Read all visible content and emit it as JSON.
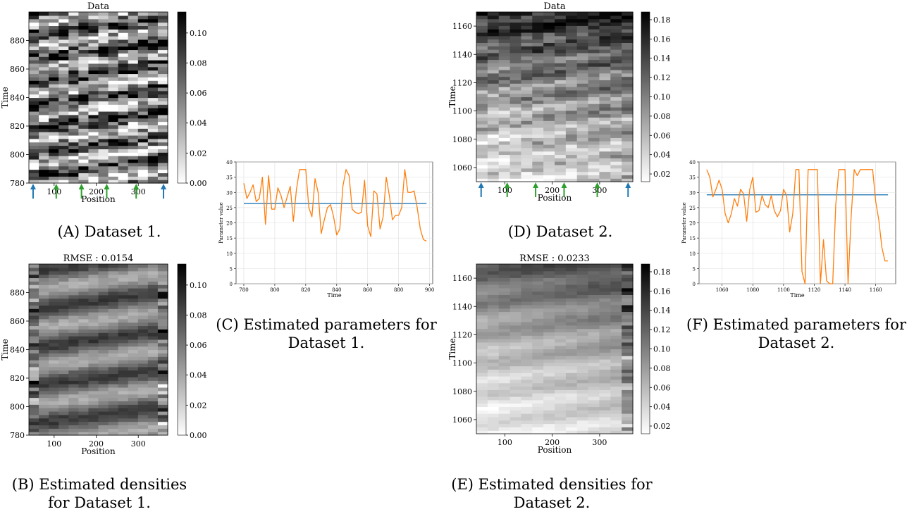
{
  "captions": {
    "a": "(A) Dataset 1.",
    "b": "(B) Estimated densities for Dataset 1.",
    "c": "(C) Estimated parameters for Dataset 1.",
    "d": "(D) Dataset 2.",
    "e": "(E) Estimated densities for Dataset 2.",
    "f": "(F) Estimated parameters for Dataset 2."
  },
  "chart_data": [
    {
      "id": "a",
      "type": "heatmap",
      "title": "Data",
      "xlabel": "Position",
      "ylabel": "Time",
      "xlim": [
        40,
        370
      ],
      "ylim": [
        780,
        900
      ],
      "xticks": [
        100,
        200,
        300
      ],
      "yticks": [
        780,
        800,
        820,
        840,
        860,
        880
      ],
      "rows": 50,
      "cols": 14,
      "colormap": "gray_r",
      "colorbar": {
        "min": 0.0,
        "max": 0.114,
        "ticks": [
          "0.00",
          "0.02",
          "0.04",
          "0.06",
          "0.08",
          "0.10"
        ],
        "tick_values": [
          0,
          0.02,
          0.04,
          0.06,
          0.08,
          0.1
        ]
      },
      "arrows": [
        {
          "x": 50,
          "color": "#1f77b4"
        },
        {
          "x": 105,
          "color": "#2ca02c"
        },
        {
          "x": 165,
          "color": "#2ca02c"
        },
        {
          "x": 225,
          "color": "#2ca02c"
        },
        {
          "x": 295,
          "color": "#2ca02c"
        },
        {
          "x": 360,
          "color": "#1f77b4"
        }
      ],
      "pattern": "noisy-diagonal-bands"
    },
    {
      "id": "b",
      "type": "heatmap",
      "title": "RMSE : 0.0154",
      "xlabel": "Position",
      "ylabel": "Time",
      "xlim": [
        40,
        370
      ],
      "ylim": [
        780,
        900
      ],
      "xticks": [
        100,
        200,
        300
      ],
      "yticks": [
        780,
        800,
        820,
        840,
        860,
        880
      ],
      "rows": 50,
      "cols": 14,
      "colormap": "gray_r",
      "colorbar": {
        "min": 0.0,
        "max": 0.114,
        "ticks": [
          "0.00",
          "0.02",
          "0.04",
          "0.06",
          "0.08",
          "0.10"
        ],
        "tick_values": [
          0,
          0.02,
          0.04,
          0.06,
          0.08,
          0.1
        ]
      },
      "pattern": "smooth-diagonal-bands"
    },
    {
      "id": "c",
      "type": "line",
      "xlabel": "Time",
      "ylabel": "Parameter value",
      "xlim": [
        775,
        902
      ],
      "ylim": [
        0,
        40
      ],
      "xticks": [
        780,
        800,
        820,
        840,
        860,
        880,
        900
      ],
      "yticks": [
        0,
        5,
        10,
        15,
        20,
        25,
        30,
        35,
        40
      ],
      "grid": true,
      "series": [
        {
          "color": "#1f77b4",
          "x": [
            780,
            898
          ],
          "y": [
            26.4,
            26.4
          ]
        },
        {
          "color": "#ff7f0e",
          "x": [
            780,
            782,
            784,
            786,
            788,
            790,
            792,
            794,
            796,
            798,
            800,
            802,
            804,
            806,
            808,
            810,
            812,
            814,
            816,
            818,
            820,
            822,
            824,
            826,
            828,
            830,
            832,
            834,
            836,
            838,
            840,
            842,
            844,
            846,
            848,
            850,
            852,
            854,
            856,
            858,
            860,
            862,
            864,
            866,
            868,
            870,
            872,
            874,
            876,
            878,
            880,
            882,
            884,
            886,
            888,
            890,
            892,
            894,
            896,
            898
          ],
          "y": [
            33,
            28,
            30,
            32.5,
            27,
            28,
            35,
            19.5,
            35.5,
            24.5,
            24.5,
            31.5,
            29,
            25,
            28.5,
            32,
            20.5,
            31,
            37.5,
            37.5,
            37.5,
            25,
            22,
            34.5,
            30,
            16.5,
            21,
            25,
            26,
            22,
            16,
            18,
            32,
            37.5,
            35.5,
            24.5,
            23.5,
            23,
            23.5,
            34,
            19,
            15.5,
            30.5,
            29.5,
            18,
            22,
            35,
            29,
            21,
            22.5,
            22.5,
            25,
            37.5,
            30,
            30,
            30.5,
            25,
            18,
            14.5,
            14
          ]
        }
      ]
    },
    {
      "id": "d",
      "type": "heatmap",
      "title": "Data",
      "xlabel": "Position",
      "ylabel": "Time",
      "xlim": [
        40,
        370
      ],
      "ylim": [
        1050,
        1170
      ],
      "xticks": [
        100,
        200,
        300
      ],
      "yticks": [
        1060,
        1080,
        1100,
        1120,
        1140,
        1160
      ],
      "rows": 50,
      "cols": 14,
      "colormap": "gray_r",
      "colorbar": {
        "min": 0.012,
        "max": 0.188,
        "ticks": [
          "0.02",
          "0.04",
          "0.06",
          "0.08",
          "0.10",
          "0.12",
          "0.14",
          "0.16",
          "0.18"
        ],
        "tick_values": [
          0.02,
          0.04,
          0.06,
          0.08,
          0.1,
          0.12,
          0.14,
          0.16,
          0.18
        ]
      },
      "arrows": [
        {
          "x": 50,
          "color": "#1f77b4"
        },
        {
          "x": 105,
          "color": "#2ca02c"
        },
        {
          "x": 165,
          "color": "#2ca02c"
        },
        {
          "x": 225,
          "color": "#2ca02c"
        },
        {
          "x": 295,
          "color": "#2ca02c"
        },
        {
          "x": 360,
          "color": "#1f77b4"
        }
      ],
      "pattern": "dark-top-light-bottom"
    },
    {
      "id": "e",
      "type": "heatmap",
      "title": "RMSE : 0.0233",
      "xlabel": "Position",
      "ylabel": "Time",
      "xlim": [
        40,
        370
      ],
      "ylim": [
        1050,
        1170
      ],
      "xticks": [
        100,
        200,
        300
      ],
      "yticks": [
        1060,
        1080,
        1100,
        1120,
        1140,
        1160
      ],
      "rows": 50,
      "cols": 14,
      "colormap": "gray_r",
      "colorbar": {
        "min": 0.012,
        "max": 0.188,
        "ticks": [
          "0.02",
          "0.04",
          "0.06",
          "0.08",
          "0.10",
          "0.12",
          "0.14",
          "0.16",
          "0.18"
        ],
        "tick_values": [
          0.02,
          0.04,
          0.06,
          0.08,
          0.1,
          0.12,
          0.14,
          0.16,
          0.18
        ]
      },
      "pattern": "smooth-dark-top-light-bottom"
    },
    {
      "id": "f",
      "type": "line",
      "xlabel": "Time",
      "ylabel": "Parameter value",
      "xlim": [
        1045,
        1173
      ],
      "ylim": [
        0,
        40
      ],
      "xticks": [
        1060,
        1080,
        1100,
        1120,
        1140,
        1160
      ],
      "yticks": [
        0,
        5,
        10,
        15,
        20,
        25,
        30,
        35,
        40
      ],
      "grid": true,
      "series": [
        {
          "color": "#1f77b4",
          "x": [
            1050,
            1168
          ],
          "y": [
            29.2,
            29.2
          ]
        },
        {
          "color": "#ff7f0e",
          "x": [
            1050,
            1052,
            1054,
            1056,
            1058,
            1060,
            1062,
            1064,
            1066,
            1068,
            1070,
            1072,
            1074,
            1076,
            1078,
            1080,
            1082,
            1084,
            1086,
            1088,
            1090,
            1092,
            1094,
            1096,
            1098,
            1100,
            1102,
            1104,
            1106,
            1108,
            1110,
            1112,
            1114,
            1116,
            1118,
            1120,
            1122,
            1124,
            1126,
            1128,
            1130,
            1132,
            1134,
            1136,
            1138,
            1140,
            1142,
            1144,
            1146,
            1148,
            1150,
            1152,
            1154,
            1156,
            1158,
            1160,
            1162,
            1164,
            1166,
            1168
          ],
          "y": [
            37.5,
            35,
            28.5,
            31,
            34,
            31,
            23,
            20,
            23,
            28,
            25.5,
            31,
            29.5,
            20.5,
            31,
            35,
            23.5,
            24,
            29,
            26,
            25,
            29,
            24,
            22,
            24,
            31,
            29,
            17,
            23,
            37.5,
            37.5,
            4,
            0,
            37.5,
            37.5,
            37.5,
            37.5,
            0,
            14.5,
            1,
            0,
            0,
            26,
            37.5,
            37.5,
            37.5,
            0,
            22,
            37.5,
            35.5,
            37.5,
            37.5,
            37.5,
            37.5,
            37.5,
            27,
            21,
            12,
            7.5,
            7.5
          ]
        }
      ]
    }
  ]
}
